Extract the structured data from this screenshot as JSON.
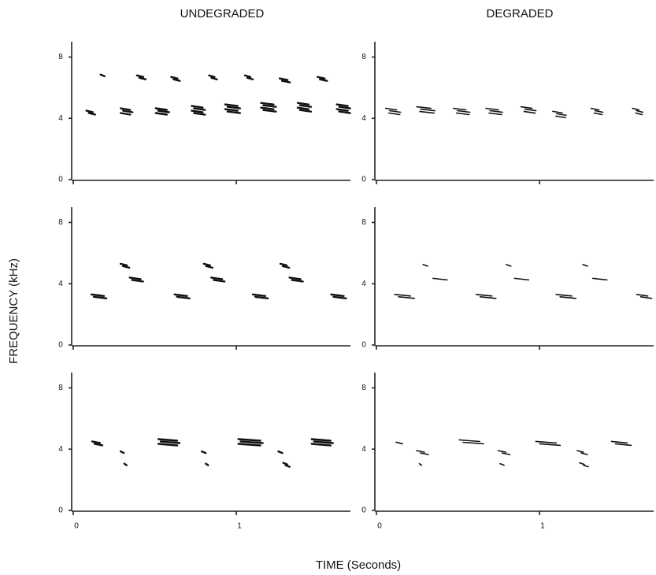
{
  "columns": [
    "UNDEGRADED",
    "DEGRADED"
  ],
  "y_axis_label": "FREQUENCY (kHz)",
  "x_axis_label": "TIME (Seconds)",
  "ylim": [
    0,
    9
  ],
  "yticks": [
    0,
    4,
    8
  ],
  "xlim": [
    0,
    1.7
  ],
  "xticks": [
    0,
    1
  ]
}
